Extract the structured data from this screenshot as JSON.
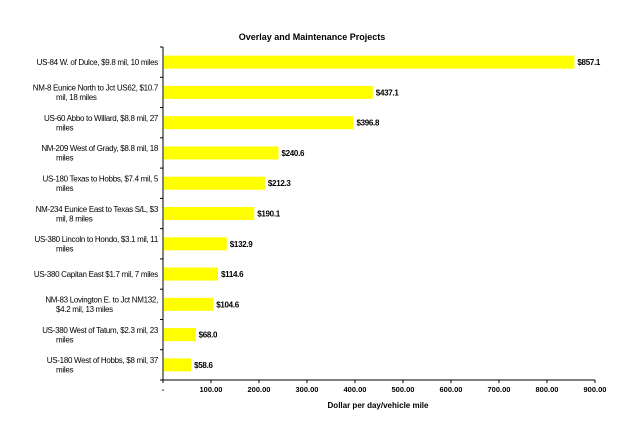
{
  "chart_data": {
    "type": "bar",
    "orientation": "horizontal",
    "title": "Overlay and Maintenance Projects",
    "xlabel": "Dollar per day/vehicle mile",
    "ylabel": "",
    "xlim": [
      0,
      900
    ],
    "x_ticks": [
      "-",
      "100.00",
      "200.00",
      "300.00",
      "400.00",
      "500.00",
      "600.00",
      "700.00",
      "800.00",
      "900.00"
    ],
    "grid": false,
    "legend": "none",
    "bar_color": "#ffff00",
    "categories": [
      [
        "US-84 W. of Dulce, $9.8 mil, 10 miles"
      ],
      [
        "NM-8 Eunice North to Jct US62, $10.7",
        "mil, 18 miles"
      ],
      [
        "US-60 Abbo to Willard, $8.8 mil, 27",
        "miles"
      ],
      [
        "NM-209 West of Grady, $8.8 mil, 18",
        "miles"
      ],
      [
        "US-180 Texas to Hobbs, $7.4 mil, 5",
        "miles"
      ],
      [
        "NM-234 Eunice East to Texas S/L, $3",
        "mil, 8 miles"
      ],
      [
        "US-380 Lincoln to Hondo, $3.1 mil, 11",
        "miles"
      ],
      [
        "US-380 Capitan East $1.7 mil, 7 miles"
      ],
      [
        "NM-83 Lovington E. to Jct NM132,",
        "$4.2 mil, 13 miles"
      ],
      [
        "US-380 West of Tatum, $2.3 mil, 23",
        "miles"
      ],
      [
        "US-180 West of Hobbs, $8 mil, 37",
        "miles"
      ]
    ],
    "values": [
      857.1,
      437.1,
      396.8,
      240.6,
      212.3,
      190.1,
      132.9,
      114.6,
      104.6,
      68.0,
      58.6
    ],
    "data_labels": [
      "$857.1",
      "$437.1",
      "$396.8",
      "$240.6",
      "$212.3",
      "$190.1",
      "$132.9",
      "$114.6",
      "$104.6",
      "$68.0",
      "$58.6"
    ]
  }
}
